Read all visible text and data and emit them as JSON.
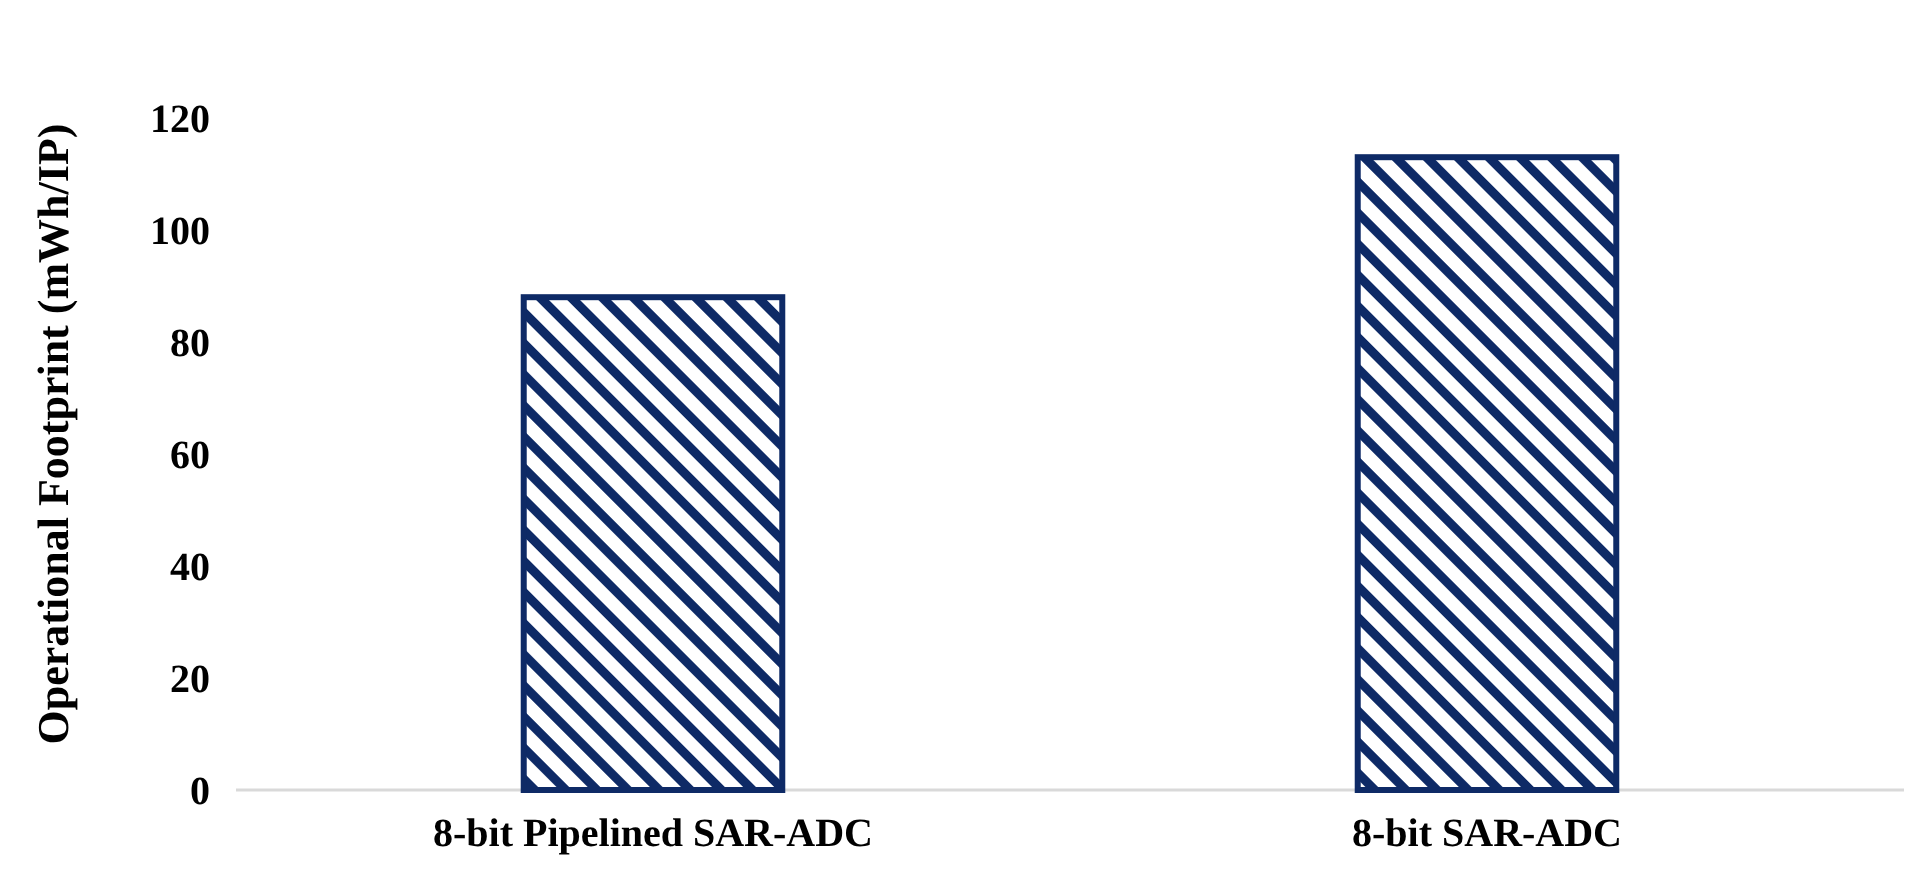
{
  "chart_data": {
    "type": "bar",
    "ylabel": "Operational Footprint (mWh/IP)",
    "categories": [
      "8-bit Pipelined SAR-ADC",
      "8-bit SAR-ADC"
    ],
    "values": [
      88,
      113
    ],
    "color": "#0e2a66",
    "ylim": [
      0,
      120
    ],
    "yticks": [
      0,
      20,
      40,
      60,
      80,
      100,
      120
    ],
    "grid": false
  }
}
